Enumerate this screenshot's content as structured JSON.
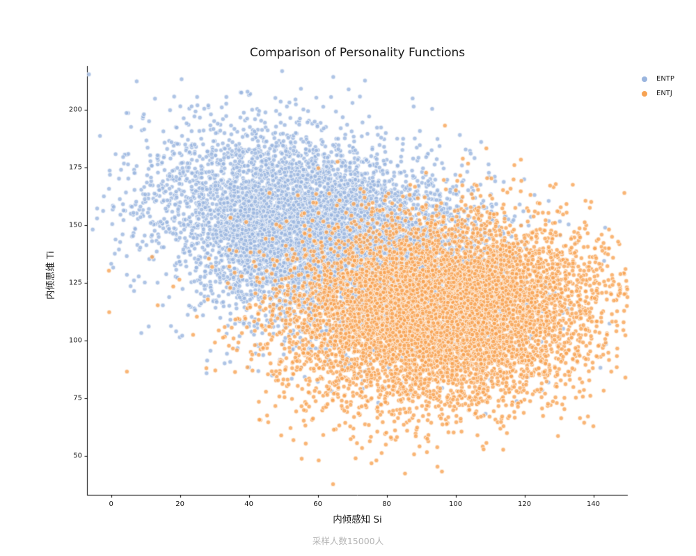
{
  "chart_data": {
    "type": "scatter",
    "title": "Comparison of Personality Functions",
    "xlabel": "内倾感知 Si",
    "ylabel": "内倾思维 Ti",
    "caption": "采样人数15000人",
    "xlim": [
      -7,
      150
    ],
    "ylim": [
      33,
      219
    ],
    "x_ticks": [
      "0",
      "20",
      "40",
      "60",
      "80",
      "100",
      "120",
      "140"
    ],
    "x_tick_values": [
      0,
      20,
      40,
      60,
      80,
      100,
      120,
      140
    ],
    "y_ticks": [
      "50",
      "75",
      "100",
      "125",
      "150",
      "175",
      "200"
    ],
    "y_tick_values": [
      50,
      75,
      100,
      125,
      150,
      175,
      200
    ],
    "grid": false,
    "legend_position": "upper-right-outside",
    "marker": {
      "radius": 3.2,
      "alpha": 0.8,
      "edge_color": "#ffffff"
    },
    "axis_color": "#000000",
    "series": [
      {
        "name": "ENTP",
        "color": "#9ab5de",
        "n": 7500,
        "mean_x": 62,
        "mean_y": 145,
        "std_x": 24,
        "std_y": 22,
        "corr": -0.35,
        "seed": 42
      },
      {
        "name": "ENTJ",
        "color": "#f7a353",
        "n": 7500,
        "mean_x": 96,
        "mean_y": 112,
        "std_x": 23,
        "std_y": 20,
        "corr": 0.1,
        "seed": 1337
      }
    ]
  }
}
